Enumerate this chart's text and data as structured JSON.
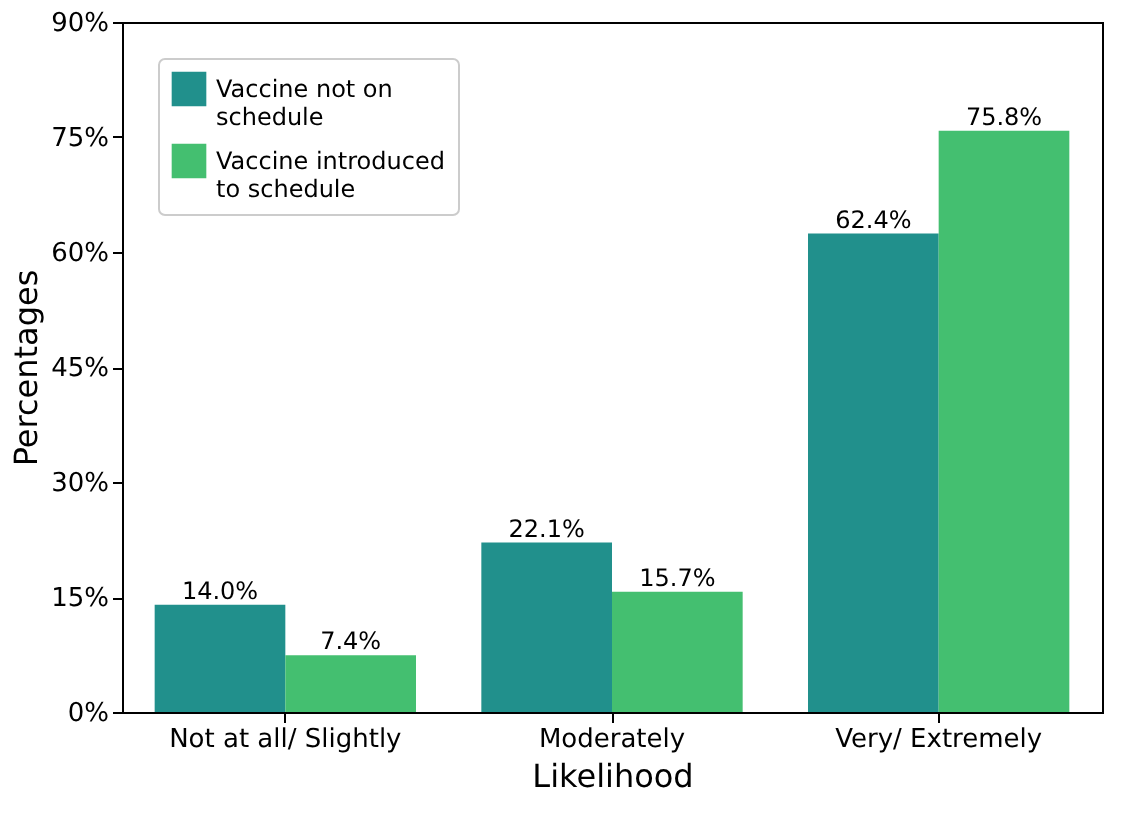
{
  "chart_data": {
    "type": "bar",
    "xlabel": "Likelihood",
    "ylabel": "Percentages",
    "categories": [
      "Not at all/ Slightly",
      "Moderately",
      "Very/ Extremely"
    ],
    "series": [
      {
        "name": "Vaccine not on schedule",
        "color": "#21908c",
        "values": [
          14.0,
          22.1,
          62.4
        ],
        "value_labels": [
          "14.0%",
          "22.1%",
          "62.4%"
        ]
      },
      {
        "name": "Vaccine introduced to schedule",
        "color": "#44bf70",
        "values": [
          7.4,
          15.7,
          75.8
        ],
        "value_labels": [
          "7.4%",
          "15.7%",
          "75.8%"
        ]
      }
    ],
    "ylim": [
      0,
      90
    ],
    "yticks": [
      {
        "value": 0,
        "label": "0%"
      },
      {
        "value": 15,
        "label": "15%"
      },
      {
        "value": 30,
        "label": "30%"
      },
      {
        "value": 45,
        "label": "45%"
      },
      {
        "value": 60,
        "label": "60%"
      },
      {
        "value": 75,
        "label": "75%"
      },
      {
        "value": 90,
        "label": "90%"
      }
    ],
    "legend": "top left",
    "grid": false
  }
}
